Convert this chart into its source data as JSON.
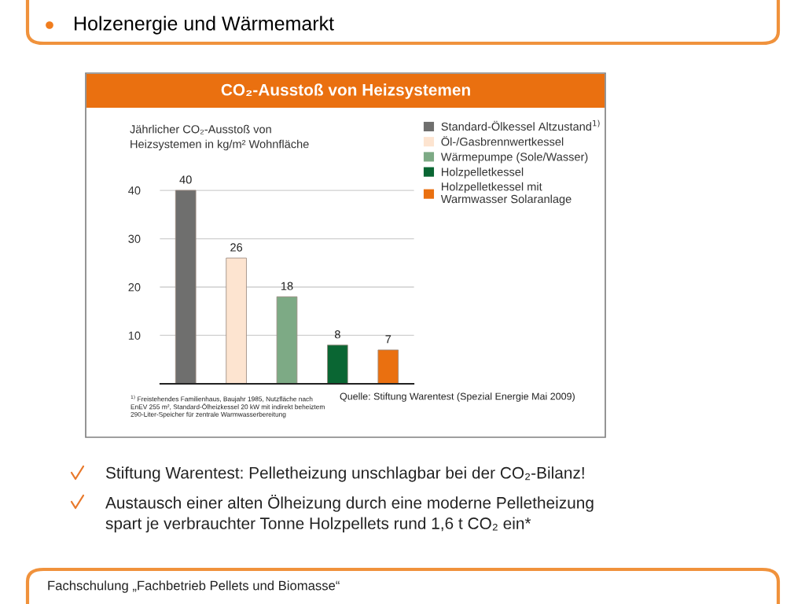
{
  "chart_data": {
    "type": "bar",
    "title": "Holzenergie und Wärmemarkt",
    "subtitle": "CO₂-Ausstoß von Heizsystemen",
    "ylabel": "Jährlicher CO₂-Ausstoß von\nHeizsystemen in kg/m² Wohnfläche",
    "categories": [
      null,
      null,
      null,
      null,
      null
    ],
    "series": [
      {
        "name": "Standard-Ölkessel Altzustand$^{1)}$",
        "color": "#6f6f6e",
        "values": [
          40,
          null,
          null,
          null,
          null
        ]
      },
      {
        "name": "Öl-/Gasbrennwertkessel",
        "color": "#fde4d0",
        "values": [
          null,
          26,
          null,
          null,
          null
        ]
      },
      {
        "name": "Wärmepumpe (Sole/Wasser)",
        "color": "#7daa85",
        "values": [
          null,
          null,
          18,
          null,
          null
        ]
      },
      {
        "name": "Holzpelletkessel",
        "color": "#0a6633",
        "values": [
          null,
          null,
          null,
          8,
          null
        ]
      },
      {
        "name": "Holzpelletkessel mit\nWarmwasser Solaranlage",
        "color": "#ea7010",
        "values": [
          null,
          null,
          null,
          null,
          7
        ]
      }
    ],
    "ylim": [
      0,
      40
    ],
    "yticks": [
      10,
      20,
      30,
      40
    ],
    "grid": "y",
    "legend": "top right",
    "data_labels": true,
    "tick_labels": "y",
    "annotations": [
      "$^{1)}$ Freistehendes Familienhaus, Baujahr 1985, Nutzfläche nach\nEnEV 255 m², Standard-Ölheizkessel 20 kW mit indirekt beheiztem\n290-Liter-Speicher für zentrale Warmwasserbereitung",
      "Quelle: Stiftung Warentest (Spezial Energie Mai 2009)",
      "Stiftung Warentest: Pelletheizung unschlagbar bei der CO₂-Bilanz!",
      "Austausch einer alten Ölheizung durch eine moderne Pelletheizung\nspart je verbrauchter Tonne Holzpellets rund 1,6 t CO₂ ein*",
      "Fachschulung „Fachbetrieb Pellets und Biomasse“"
    ]
  }
}
